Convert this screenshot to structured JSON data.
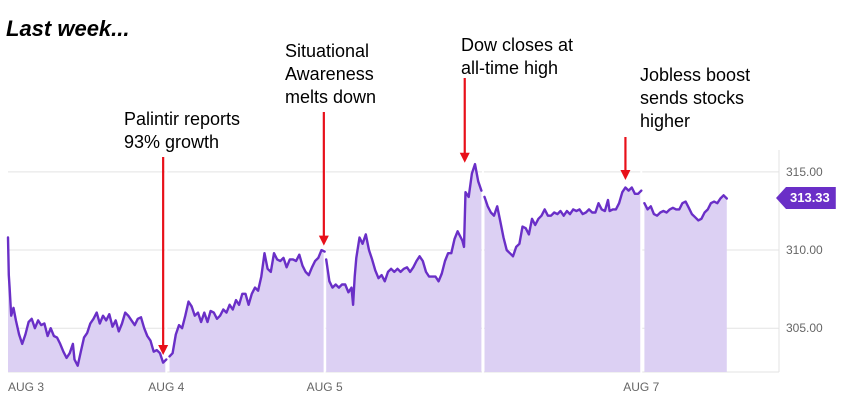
{
  "heading": "Last week...",
  "annotations": [
    {
      "id": "palantir",
      "lines": [
        "Palintir reports",
        "93% growth"
      ]
    },
    {
      "id": "situational",
      "lines": [
        "Situational",
        "Awareness",
        "melts down"
      ]
    },
    {
      "id": "dow",
      "lines": [
        "Dow closes at",
        "all-time high"
      ]
    },
    {
      "id": "jobless",
      "lines": [
        "Jobless boost",
        "sends stocks",
        "higher"
      ]
    }
  ],
  "colors": {
    "line": "#6a2fc7",
    "fill": "#dcd0f3",
    "annotation_arrow": "#e8101a",
    "badge": "#6a2fc7"
  },
  "chart_data": {
    "type": "area",
    "title": "",
    "xlabel": "",
    "ylabel": "",
    "x_ticks": [
      {
        "label": "AUG 3",
        "position": 0
      },
      {
        "label": "AUG 4",
        "position": 1
      },
      {
        "label": "AUG 5",
        "position": 2
      },
      {
        "label": "",
        "position": 3
      },
      {
        "label": "AUG 7",
        "position": 4
      }
    ],
    "day_range": [
      0,
      4.87
    ],
    "y_ticks": [
      "315.00",
      "310.00",
      "305.00"
    ],
    "ylim": [
      302.2,
      316.4
    ],
    "last_price": "313.33",
    "grid": true,
    "series": [
      {
        "values": [
          [
            0.0,
            310.8
          ],
          [
            0.005,
            308.4
          ],
          [
            0.01,
            307.6
          ],
          [
            0.02,
            305.8
          ],
          [
            0.035,
            306.3
          ],
          [
            0.05,
            305.5
          ],
          [
            0.07,
            304.6
          ],
          [
            0.09,
            304.0
          ],
          [
            0.11,
            304.6
          ],
          [
            0.13,
            305.4
          ],
          [
            0.15,
            305.6
          ],
          [
            0.17,
            305.0
          ],
          [
            0.19,
            305.5
          ],
          [
            0.21,
            305.2
          ],
          [
            0.23,
            305.3
          ],
          [
            0.25,
            304.5
          ],
          [
            0.27,
            305.0
          ],
          [
            0.29,
            304.5
          ],
          [
            0.31,
            304.4
          ],
          [
            0.33,
            304.0
          ],
          [
            0.35,
            303.5
          ],
          [
            0.37,
            303.1
          ],
          [
            0.39,
            303.4
          ],
          [
            0.41,
            304.0
          ],
          [
            0.42,
            303.0
          ],
          [
            0.44,
            302.6
          ],
          [
            0.46,
            303.5
          ],
          [
            0.48,
            304.4
          ],
          [
            0.5,
            304.7
          ],
          [
            0.52,
            305.3
          ],
          [
            0.54,
            305.6
          ],
          [
            0.56,
            306.0
          ],
          [
            0.58,
            305.3
          ],
          [
            0.6,
            305.8
          ],
          [
            0.62,
            305.5
          ],
          [
            0.64,
            305.9
          ],
          [
            0.66,
            305.1
          ],
          [
            0.68,
            305.5
          ],
          [
            0.7,
            304.8
          ],
          [
            0.72,
            305.3
          ],
          [
            0.74,
            306.0
          ],
          [
            0.76,
            305.8
          ],
          [
            0.78,
            305.5
          ],
          [
            0.8,
            305.2
          ],
          [
            0.82,
            305.6
          ],
          [
            0.84,
            305.7
          ],
          [
            0.86,
            305.0
          ],
          [
            0.88,
            304.5
          ],
          [
            0.9,
            304.2
          ],
          [
            0.92,
            303.5
          ],
          [
            0.94,
            303.6
          ],
          [
            0.96,
            303.4
          ],
          [
            0.98,
            302.8
          ],
          [
            1.0,
            303.0
          ],
          [
            1.02,
            303.2
          ],
          [
            1.04,
            303.4
          ],
          [
            1.06,
            304.6
          ],
          [
            1.08,
            305.2
          ],
          [
            1.1,
            305.0
          ],
          [
            1.12,
            305.8
          ],
          [
            1.14,
            306.7
          ],
          [
            1.16,
            306.4
          ],
          [
            1.18,
            305.8
          ],
          [
            1.2,
            306.0
          ],
          [
            1.22,
            305.4
          ],
          [
            1.24,
            306.0
          ],
          [
            1.26,
            305.4
          ],
          [
            1.28,
            306.1
          ],
          [
            1.3,
            306.0
          ],
          [
            1.32,
            305.6
          ],
          [
            1.34,
            305.8
          ],
          [
            1.36,
            306.2
          ],
          [
            1.38,
            306.0
          ],
          [
            1.4,
            306.5
          ],
          [
            1.42,
            306.2
          ],
          [
            1.44,
            306.8
          ],
          [
            1.46,
            306.5
          ],
          [
            1.48,
            307.2
          ],
          [
            1.5,
            307.2
          ],
          [
            1.52,
            306.5
          ],
          [
            1.54,
            307.2
          ],
          [
            1.56,
            307.6
          ],
          [
            1.58,
            307.4
          ],
          [
            1.6,
            308.3
          ],
          [
            1.62,
            309.8
          ],
          [
            1.64,
            308.8
          ],
          [
            1.66,
            308.6
          ],
          [
            1.68,
            309.8
          ],
          [
            1.7,
            309.4
          ],
          [
            1.72,
            309.3
          ],
          [
            1.74,
            309.5
          ],
          [
            1.76,
            308.9
          ],
          [
            1.78,
            309.4
          ],
          [
            1.8,
            309.4
          ],
          [
            1.82,
            309.3
          ],
          [
            1.84,
            309.7
          ],
          [
            1.86,
            309.0
          ],
          [
            1.88,
            308.6
          ],
          [
            1.9,
            308.4
          ],
          [
            1.92,
            308.9
          ],
          [
            1.94,
            309.3
          ],
          [
            1.96,
            309.5
          ],
          [
            1.98,
            310.0
          ],
          [
            2.0,
            309.9
          ],
          [
            2.01,
            309.4
          ],
          [
            2.03,
            308.0
          ],
          [
            2.05,
            307.6
          ],
          [
            2.07,
            307.8
          ],
          [
            2.09,
            307.6
          ],
          [
            2.11,
            307.8
          ],
          [
            2.13,
            307.8
          ],
          [
            2.15,
            307.3
          ],
          [
            2.17,
            307.6
          ],
          [
            2.18,
            306.5
          ],
          [
            2.19,
            308.3
          ],
          [
            2.2,
            309.5
          ],
          [
            2.22,
            310.8
          ],
          [
            2.24,
            310.4
          ],
          [
            2.26,
            311.0
          ],
          [
            2.28,
            310.0
          ],
          [
            2.3,
            309.4
          ],
          [
            2.32,
            308.7
          ],
          [
            2.34,
            308.2
          ],
          [
            2.36,
            308.4
          ],
          [
            2.38,
            308.0
          ],
          [
            2.4,
            308.6
          ],
          [
            2.42,
            308.8
          ],
          [
            2.44,
            308.6
          ],
          [
            2.46,
            308.8
          ],
          [
            2.48,
            308.6
          ],
          [
            2.5,
            308.8
          ],
          [
            2.52,
            308.9
          ],
          [
            2.54,
            308.6
          ],
          [
            2.56,
            308.9
          ],
          [
            2.58,
            309.3
          ],
          [
            2.6,
            309.6
          ],
          [
            2.62,
            309.3
          ],
          [
            2.64,
            308.6
          ],
          [
            2.66,
            308.3
          ],
          [
            2.68,
            308.3
          ],
          [
            2.7,
            308.3
          ],
          [
            2.72,
            308.0
          ],
          [
            2.74,
            308.5
          ],
          [
            2.76,
            309.3
          ],
          [
            2.78,
            309.8
          ],
          [
            2.8,
            309.8
          ],
          [
            2.82,
            310.7
          ],
          [
            2.84,
            311.2
          ],
          [
            2.86,
            310.8
          ],
          [
            2.87,
            310.6
          ],
          [
            2.88,
            310.2
          ],
          [
            2.89,
            313.7
          ],
          [
            2.91,
            313.4
          ],
          [
            2.93,
            314.9
          ],
          [
            2.95,
            315.5
          ],
          [
            2.97,
            314.4
          ],
          [
            2.99,
            313.8
          ],
          [
            3.01,
            313.4
          ],
          [
            3.03,
            312.8
          ],
          [
            3.05,
            312.4
          ],
          [
            3.07,
            312.2
          ],
          [
            3.09,
            312.8
          ],
          [
            3.11,
            311.8
          ],
          [
            3.13,
            310.8
          ],
          [
            3.15,
            310.0
          ],
          [
            3.17,
            309.8
          ],
          [
            3.19,
            309.6
          ],
          [
            3.21,
            310.2
          ],
          [
            3.23,
            310.4
          ],
          [
            3.25,
            311.5
          ],
          [
            3.27,
            311.4
          ],
          [
            3.29,
            311.0
          ],
          [
            3.31,
            312.0
          ],
          [
            3.33,
            311.6
          ],
          [
            3.35,
            312.0
          ],
          [
            3.37,
            312.2
          ],
          [
            3.39,
            312.6
          ],
          [
            3.41,
            312.2
          ],
          [
            3.43,
            312.2
          ],
          [
            3.45,
            312.4
          ],
          [
            3.47,
            312.3
          ],
          [
            3.49,
            312.5
          ],
          [
            3.51,
            312.2
          ],
          [
            3.53,
            312.5
          ],
          [
            3.55,
            312.3
          ],
          [
            3.57,
            312.6
          ],
          [
            3.59,
            312.5
          ],
          [
            3.61,
            312.6
          ],
          [
            3.63,
            312.3
          ],
          [
            3.65,
            312.4
          ],
          [
            3.67,
            312.6
          ],
          [
            3.69,
            312.4
          ],
          [
            3.71,
            312.4
          ],
          [
            3.73,
            313.0
          ],
          [
            3.75,
            312.6
          ],
          [
            3.77,
            312.5
          ],
          [
            3.79,
            313.2
          ],
          [
            3.8,
            312.5
          ],
          [
            3.82,
            312.6
          ],
          [
            3.84,
            312.6
          ],
          [
            3.86,
            313.0
          ],
          [
            3.88,
            313.7
          ],
          [
            3.9,
            314.0
          ],
          [
            3.92,
            313.8
          ],
          [
            3.94,
            314.0
          ],
          [
            3.96,
            313.6
          ],
          [
            3.98,
            313.6
          ],
          [
            4.0,
            313.8
          ],
          [
            4.02,
            313.0
          ],
          [
            4.04,
            312.6
          ],
          [
            4.06,
            312.8
          ],
          [
            4.08,
            312.3
          ],
          [
            4.1,
            312.2
          ],
          [
            4.12,
            312.4
          ],
          [
            4.14,
            312.5
          ],
          [
            4.16,
            312.4
          ],
          [
            4.18,
            312.6
          ],
          [
            4.2,
            312.7
          ],
          [
            4.22,
            312.6
          ],
          [
            4.24,
            312.6
          ],
          [
            4.26,
            313.0
          ],
          [
            4.28,
            313.1
          ],
          [
            4.3,
            312.7
          ],
          [
            4.32,
            312.3
          ],
          [
            4.34,
            312.1
          ],
          [
            4.36,
            311.9
          ],
          [
            4.38,
            312.0
          ],
          [
            4.4,
            312.4
          ],
          [
            4.42,
            312.6
          ],
          [
            4.44,
            313.0
          ],
          [
            4.46,
            313.1
          ],
          [
            4.48,
            313.0
          ],
          [
            4.5,
            313.3
          ],
          [
            4.52,
            313.5
          ],
          [
            4.54,
            313.3
          ]
        ]
      }
    ],
    "segment_breaks": [
      1,
      2,
      3,
      4
    ],
    "annotation_points": [
      {
        "id": "palantir",
        "day": 0.98,
        "value": 302.9
      },
      {
        "id": "situational",
        "day": 1.995,
        "value": 309.9
      },
      {
        "id": "dow",
        "day": 2.885,
        "value": 315.2
      },
      {
        "id": "jobless",
        "day": 3.9,
        "value": 314.1
      }
    ]
  }
}
